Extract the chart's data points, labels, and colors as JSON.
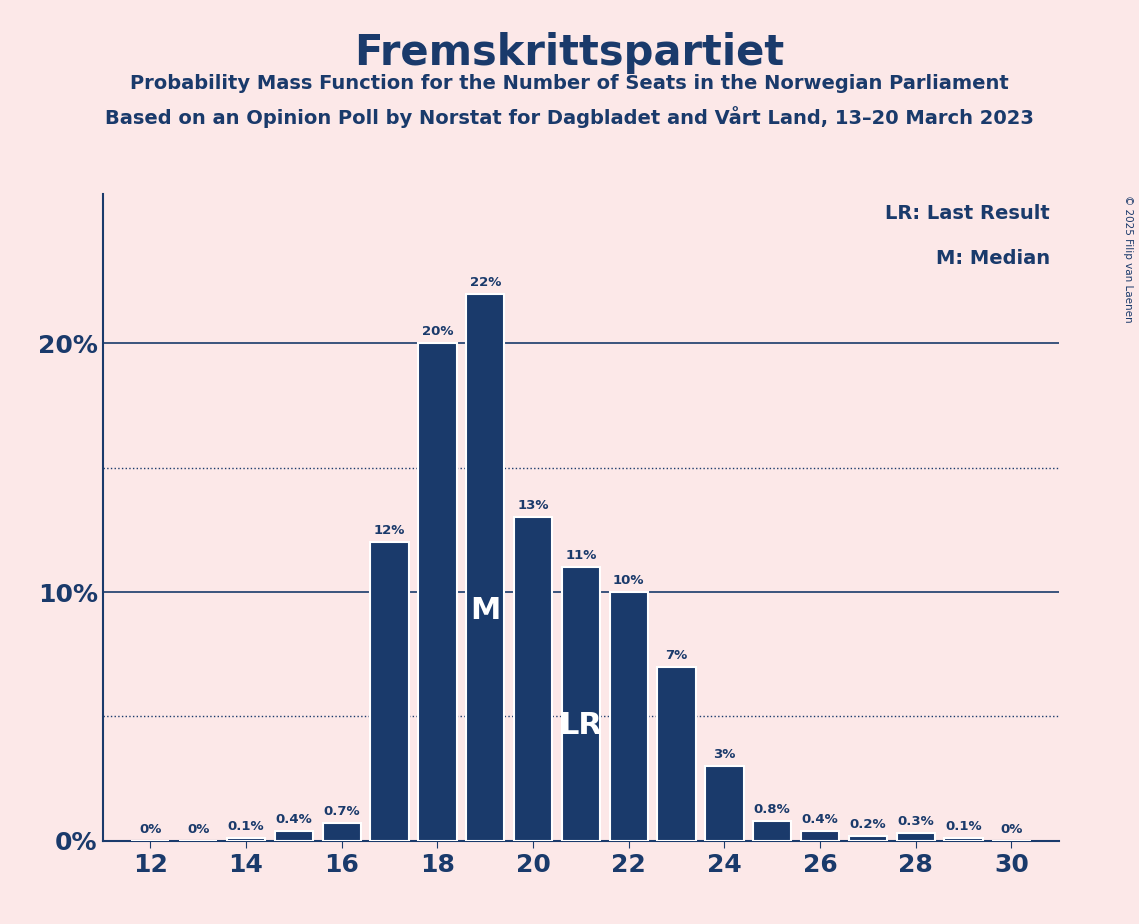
{
  "title": "Fremskrittspartiet",
  "subtitle1": "Probability Mass Function for the Number of Seats in the Norwegian Parliament",
  "subtitle2": "Based on an Opinion Poll by Norstat for Dagbladet and Vårt Land, 13–20 March 2023",
  "copyright": "© 2025 Filip van Laenen",
  "legend_lr": "LR: Last Result",
  "legend_m": "M: Median",
  "seats": [
    12,
    13,
    14,
    15,
    16,
    17,
    18,
    19,
    20,
    21,
    22,
    23,
    24,
    25,
    26,
    27,
    28,
    29,
    30
  ],
  "probabilities": [
    0.0,
    0.0,
    0.1,
    0.4,
    0.7,
    12.0,
    20.0,
    22.0,
    13.0,
    11.0,
    10.0,
    7.0,
    3.0,
    0.8,
    0.4,
    0.2,
    0.3,
    0.1,
    0.0
  ],
  "bar_color": "#1a3a6b",
  "background_color": "#fce8e8",
  "text_color": "#1a3a6b",
  "median_seat": 19,
  "lr_seat": 21,
  "yticks": [
    0,
    10,
    20
  ],
  "ytick_labels": [
    "0%",
    "10%",
    "20%"
  ],
  "dotted_lines": [
    5.0,
    15.0
  ],
  "solid_lines": [
    10.0,
    20.0
  ],
  "xlim": [
    11.0,
    31.0
  ],
  "ylim": [
    0,
    26
  ]
}
